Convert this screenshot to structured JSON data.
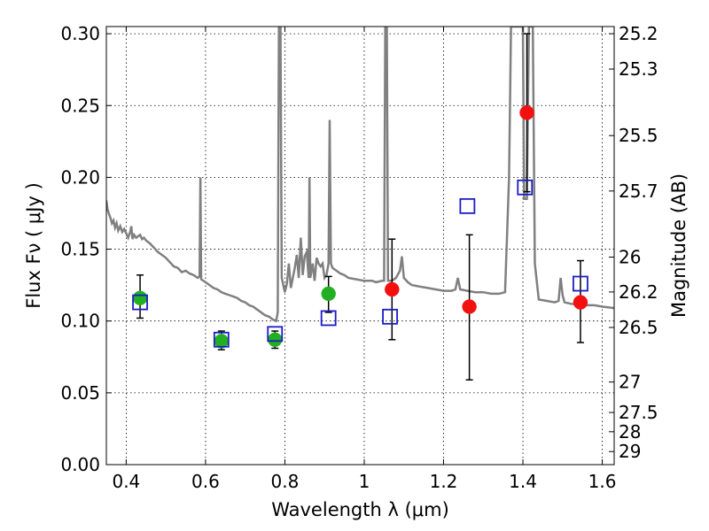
{
  "chart_data": {
    "type": "scatter",
    "title": "",
    "xlabel": "Wavelength  λ (μm)",
    "ylabel": "Flux  Fν  ( μJy )",
    "ylabel_right": "Magnitude (AB)",
    "xlim": [
      0.35,
      1.63
    ],
    "ylim": [
      0.0,
      0.305
    ],
    "x_ticks": [
      0.4,
      0.6,
      0.8,
      1.0,
      1.2,
      1.4,
      1.6
    ],
    "x_tick_labels": [
      "0.4",
      "0.6",
      "0.8",
      "1",
      "1.2",
      "1.4",
      "1.6"
    ],
    "y_ticks": [
      0.0,
      0.05,
      0.1,
      0.15,
      0.2,
      0.25,
      0.3
    ],
    "y_tick_labels": [
      "0.00",
      "0.05",
      "0.10",
      "0.15",
      "0.20",
      "0.25",
      "0.30"
    ],
    "right_ticks": [
      {
        "flux": 0.3,
        "label": "25.2"
      },
      {
        "flux": 0.2754,
        "label": "25.3"
      },
      {
        "flux": 0.2291,
        "label": "25.5"
      },
      {
        "flux": 0.1905,
        "label": "25.7"
      },
      {
        "flux": 0.1445,
        "label": "26"
      },
      {
        "flux": 0.1202,
        "label": "26.2"
      },
      {
        "flux": 0.0955,
        "label": "26.5"
      },
      {
        "flux": 0.0575,
        "label": "27"
      },
      {
        "flux": 0.0363,
        "label": "27.5"
      },
      {
        "flux": 0.0229,
        "label": "28"
      },
      {
        "flux": 0.0091,
        "label": "29"
      }
    ],
    "grid": true,
    "colors": {
      "spectrum": "#808080",
      "green_points": "#22b022",
      "red_points": "#f51010",
      "model_squares": "#1c1cc8",
      "error_bars": "#000000"
    },
    "series": [
      {
        "kind": "spectrum",
        "points": [
          [
            0.35,
            0.184
          ],
          [
            0.353,
            0.178
          ],
          [
            0.356,
            0.175
          ],
          [
            0.36,
            0.172
          ],
          [
            0.364,
            0.168
          ],
          [
            0.368,
            0.17
          ],
          [
            0.372,
            0.165
          ],
          [
            0.376,
            0.168
          ],
          [
            0.38,
            0.163
          ],
          [
            0.385,
            0.166
          ],
          [
            0.39,
            0.162
          ],
          [
            0.395,
            0.164
          ],
          [
            0.4,
            0.161
          ],
          [
            0.405,
            0.158
          ],
          [
            0.41,
            0.162
          ],
          [
            0.413,
            0.166
          ],
          [
            0.416,
            0.157
          ],
          [
            0.42,
            0.16
          ],
          [
            0.425,
            0.158
          ],
          [
            0.43,
            0.159
          ],
          [
            0.435,
            0.16
          ],
          [
            0.44,
            0.157
          ],
          [
            0.445,
            0.158
          ],
          [
            0.45,
            0.156
          ],
          [
            0.46,
            0.154
          ],
          [
            0.47,
            0.151
          ],
          [
            0.48,
            0.148
          ],
          [
            0.49,
            0.146
          ],
          [
            0.5,
            0.144
          ],
          [
            0.51,
            0.141
          ],
          [
            0.52,
            0.138
          ],
          [
            0.53,
            0.137
          ],
          [
            0.54,
            0.134
          ],
          [
            0.55,
            0.135
          ],
          [
            0.56,
            0.133
          ],
          [
            0.57,
            0.132
          ],
          [
            0.58,
            0.13
          ],
          [
            0.585,
            0.131
          ],
          [
            0.587,
            0.2
          ],
          [
            0.589,
            0.129
          ],
          [
            0.6,
            0.127
          ],
          [
            0.61,
            0.125
          ],
          [
            0.62,
            0.123
          ],
          [
            0.63,
            0.122
          ],
          [
            0.64,
            0.12
          ],
          [
            0.65,
            0.119
          ],
          [
            0.66,
            0.118
          ],
          [
            0.67,
            0.117
          ],
          [
            0.68,
            0.116
          ],
          [
            0.69,
            0.114
          ],
          [
            0.7,
            0.113
          ],
          [
            0.71,
            0.111
          ],
          [
            0.72,
            0.11
          ],
          [
            0.73,
            0.108
          ],
          [
            0.74,
            0.106
          ],
          [
            0.75,
            0.104
          ],
          [
            0.76,
            0.103
          ],
          [
            0.77,
            0.101
          ],
          [
            0.778,
            0.1
          ],
          [
            0.782,
            0.106
          ],
          [
            0.785,
            0.305
          ],
          [
            0.789,
            0.305
          ],
          [
            0.792,
            0.13
          ],
          [
            0.8,
            0.12
          ],
          [
            0.805,
            0.126
          ],
          [
            0.81,
            0.14
          ],
          [
            0.815,
            0.123
          ],
          [
            0.82,
            0.13
          ],
          [
            0.825,
            0.137
          ],
          [
            0.83,
            0.146
          ],
          [
            0.835,
            0.13
          ],
          [
            0.84,
            0.158
          ],
          [
            0.845,
            0.132
          ],
          [
            0.85,
            0.145
          ],
          [
            0.855,
            0.148
          ],
          [
            0.86,
            0.13
          ],
          [
            0.862,
            0.2
          ],
          [
            0.864,
            0.13
          ],
          [
            0.87,
            0.14
          ],
          [
            0.875,
            0.128
          ],
          [
            0.88,
            0.144
          ],
          [
            0.885,
            0.14
          ],
          [
            0.89,
            0.138
          ],
          [
            0.895,
            0.14
          ],
          [
            0.9,
            0.13
          ],
          [
            0.905,
            0.132
          ],
          [
            0.91,
            0.14
          ],
          [
            0.913,
            0.24
          ],
          [
            0.916,
            0.14
          ],
          [
            0.92,
            0.137
          ],
          [
            0.93,
            0.135
          ],
          [
            0.94,
            0.133
          ],
          [
            0.95,
            0.132
          ],
          [
            0.96,
            0.13
          ],
          [
            0.98,
            0.129
          ],
          [
            1.0,
            0.128
          ],
          [
            1.02,
            0.128
          ],
          [
            1.03,
            0.127
          ],
          [
            1.045,
            0.128
          ],
          [
            1.05,
            0.128
          ],
          [
            1.053,
            0.305
          ],
          [
            1.057,
            0.305
          ],
          [
            1.06,
            0.128
          ],
          [
            1.07,
            0.128
          ],
          [
            1.08,
            0.13
          ],
          [
            1.09,
            0.135
          ],
          [
            1.095,
            0.145
          ],
          [
            1.1,
            0.13
          ],
          [
            1.11,
            0.127
          ],
          [
            1.12,
            0.125
          ],
          [
            1.14,
            0.124
          ],
          [
            1.16,
            0.123
          ],
          [
            1.18,
            0.122
          ],
          [
            1.2,
            0.121
          ],
          [
            1.22,
            0.121
          ],
          [
            1.23,
            0.122
          ],
          [
            1.236,
            0.13
          ],
          [
            1.242,
            0.122
          ],
          [
            1.26,
            0.121
          ],
          [
            1.28,
            0.12
          ],
          [
            1.3,
            0.12
          ],
          [
            1.32,
            0.119
          ],
          [
            1.34,
            0.119
          ],
          [
            1.355,
            0.12
          ],
          [
            1.365,
            0.2
          ],
          [
            1.37,
            0.305
          ],
          [
            1.4,
            0.305
          ],
          [
            1.403,
            0.185
          ],
          [
            1.41,
            0.185
          ],
          [
            1.415,
            0.305
          ],
          [
            1.425,
            0.305
          ],
          [
            1.43,
            0.14
          ],
          [
            1.44,
            0.115
          ],
          [
            1.46,
            0.114
          ],
          [
            1.48,
            0.113
          ],
          [
            1.49,
            0.114
          ],
          [
            1.495,
            0.13
          ],
          [
            1.5,
            0.118
          ],
          [
            1.505,
            0.113
          ],
          [
            1.52,
            0.112
          ],
          [
            1.55,
            0.111
          ],
          [
            1.58,
            0.111
          ],
          [
            1.6,
            0.11
          ],
          [
            1.63,
            0.109
          ]
        ]
      },
      {
        "kind": "green_points",
        "points": [
          {
            "x": 0.435,
            "y": 0.116,
            "yerr_low": 0.102,
            "yerr_high": 0.132
          },
          {
            "x": 0.64,
            "y": 0.086,
            "yerr_low": 0.08,
            "yerr_high": 0.093
          },
          {
            "x": 0.775,
            "y": 0.087,
            "yerr_low": 0.081,
            "yerr_high": 0.093
          },
          {
            "x": 0.91,
            "y": 0.119,
            "yerr_low": 0.106,
            "yerr_high": 0.131
          }
        ]
      },
      {
        "kind": "red_points",
        "points": [
          {
            "x": 1.07,
            "y": 0.122,
            "yerr_low": 0.087,
            "yerr_high": 0.157
          },
          {
            "x": 1.265,
            "y": 0.11,
            "yerr_low": 0.059,
            "yerr_high": 0.16
          },
          {
            "x": 1.41,
            "y": 0.245,
            "yerr_low": 0.19,
            "yerr_high": 0.3
          },
          {
            "x": 1.545,
            "y": 0.113,
            "yerr_low": 0.085,
            "yerr_high": 0.142
          }
        ]
      },
      {
        "kind": "model_squares",
        "points": [
          {
            "x": 0.435,
            "y": 0.113
          },
          {
            "x": 0.64,
            "y": 0.087
          },
          {
            "x": 0.775,
            "y": 0.091
          },
          {
            "x": 0.91,
            "y": 0.102
          },
          {
            "x": 1.065,
            "y": 0.103
          },
          {
            "x": 1.26,
            "y": 0.18
          },
          {
            "x": 1.405,
            "y": 0.193
          },
          {
            "x": 1.545,
            "y": 0.126
          }
        ]
      }
    ]
  }
}
